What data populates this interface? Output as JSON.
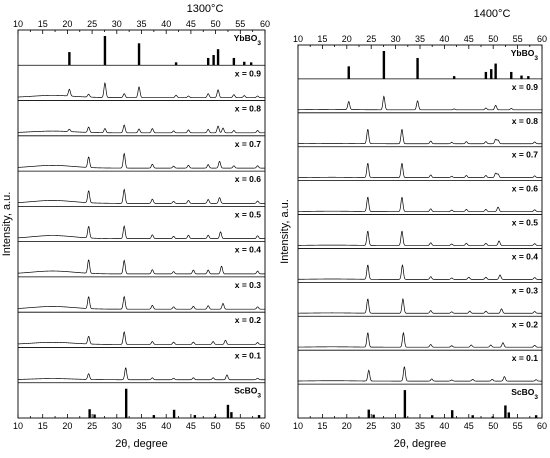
{
  "chart_data": [
    {
      "type": "line",
      "title": "1300°C",
      "xlabel": "2θ, degree",
      "ylabel": "Intensity, a.u.",
      "xlim": [
        10,
        60
      ],
      "x_ticks": [
        10,
        15,
        20,
        25,
        30,
        35,
        40,
        45,
        50,
        55,
        60
      ],
      "rows": [
        {
          "label": "YbBO3",
          "kind": "reference",
          "peaks": [
            [
              20.4,
              0.45
            ],
            [
              27.6,
              1.0
            ],
            [
              34.5,
              0.75
            ],
            [
              42.0,
              0.1
            ],
            [
              48.5,
              0.25
            ],
            [
              49.6,
              0.35
            ],
            [
              50.5,
              0.55
            ],
            [
              53.7,
              0.25
            ],
            [
              55.8,
              0.12
            ],
            [
              57.2,
              0.1
            ]
          ]
        },
        {
          "label": "x = 0.9",
          "kind": "pattern",
          "hump": 0.22,
          "peaks": [
            [
              20.4,
              0.35
            ],
            [
              24.3,
              0.15
            ],
            [
              27.6,
              0.75
            ],
            [
              31.5,
              0.2
            ],
            [
              34.5,
              0.55
            ],
            [
              42.0,
              0.12
            ],
            [
              44.5,
              0.08
            ],
            [
              48.5,
              0.2
            ],
            [
              50.5,
              0.4
            ],
            [
              53.7,
              0.15
            ],
            [
              55.8,
              0.1
            ],
            [
              58.5,
              0.08
            ]
          ]
        },
        {
          "label": "x = 0.8",
          "kind": "pattern",
          "hump": 0.18,
          "peaks": [
            [
              20.4,
              0.12
            ],
            [
              24.3,
              0.28
            ],
            [
              27.6,
              0.22
            ],
            [
              31.5,
              0.4
            ],
            [
              34.5,
              0.2
            ],
            [
              37.2,
              0.22
            ],
            [
              41.5,
              0.1
            ],
            [
              44.5,
              0.15
            ],
            [
              48.5,
              0.18
            ],
            [
              50.5,
              0.35
            ],
            [
              51.5,
              0.25
            ],
            [
              53.7,
              0.12
            ],
            [
              58.5,
              0.12
            ]
          ]
        },
        {
          "label": "x = 0.7",
          "kind": "pattern",
          "hump": 0.28,
          "peaks": [
            [
              24.3,
              0.55
            ],
            [
              31.5,
              0.75
            ],
            [
              37.2,
              0.2
            ],
            [
              41.5,
              0.1
            ],
            [
              44.5,
              0.15
            ],
            [
              48.5,
              0.18
            ],
            [
              50.8,
              0.35
            ],
            [
              53.7,
              0.12
            ],
            [
              58.5,
              0.12
            ]
          ]
        },
        {
          "label": "x = 0.6",
          "kind": "pattern",
          "hump": 0.3,
          "peaks": [
            [
              24.3,
              0.62
            ],
            [
              31.5,
              0.72
            ],
            [
              37.2,
              0.22
            ],
            [
              41.5,
              0.1
            ],
            [
              44.5,
              0.15
            ],
            [
              48.5,
              0.2
            ],
            [
              50.8,
              0.3
            ],
            [
              58.5,
              0.12
            ]
          ]
        },
        {
          "label": "x = 0.5",
          "kind": "pattern",
          "hump": 0.32,
          "peaks": [
            [
              24.3,
              0.6
            ],
            [
              31.5,
              0.65
            ],
            [
              37.2,
              0.2
            ],
            [
              41.5,
              0.12
            ],
            [
              44.5,
              0.18
            ],
            [
              48.5,
              0.18
            ],
            [
              51.0,
              0.35
            ],
            [
              58.5,
              0.15
            ]
          ]
        },
        {
          "label": "x = 0.4",
          "kind": "pattern",
          "hump": 0.3,
          "peaks": [
            [
              24.3,
              0.7
            ],
            [
              31.5,
              0.7
            ],
            [
              37.2,
              0.22
            ],
            [
              41.5,
              0.12
            ],
            [
              45.5,
              0.2
            ],
            [
              48.5,
              0.2
            ],
            [
              51.2,
              0.4
            ],
            [
              58.5,
              0.15
            ]
          ]
        },
        {
          "label": "x = 0.3",
          "kind": "pattern",
          "hump": 0.28,
          "peaks": [
            [
              24.3,
              0.62
            ],
            [
              31.5,
              0.65
            ],
            [
              37.2,
              0.2
            ],
            [
              41.5,
              0.12
            ],
            [
              45.5,
              0.15
            ],
            [
              48.5,
              0.18
            ],
            [
              51.5,
              0.3
            ],
            [
              58.5,
              0.12
            ]
          ]
        },
        {
          "label": "x = 0.2",
          "kind": "pattern",
          "hump": 0.22,
          "peaks": [
            [
              24.3,
              0.4
            ],
            [
              31.5,
              0.65
            ],
            [
              37.2,
              0.15
            ],
            [
              41.5,
              0.12
            ],
            [
              45.5,
              0.12
            ],
            [
              49.5,
              0.15
            ],
            [
              52.0,
              0.22
            ],
            [
              58.5,
              0.1
            ]
          ]
        },
        {
          "label": "x = 0.1",
          "kind": "pattern",
          "hump": 0.12,
          "peaks": [
            [
              24.3,
              0.3
            ],
            [
              31.8,
              0.62
            ],
            [
              37.2,
              0.1
            ],
            [
              41.5,
              0.08
            ],
            [
              45.5,
              0.1
            ],
            [
              49.5,
              0.1
            ],
            [
              52.3,
              0.25
            ],
            [
              58.5,
              0.08
            ]
          ]
        },
        {
          "label": "ScBO3",
          "kind": "reference",
          "peaks": [
            [
              24.5,
              0.3
            ],
            [
              25.5,
              0.12
            ],
            [
              31.9,
              1.0
            ],
            [
              37.5,
              0.1
            ],
            [
              41.6,
              0.28
            ],
            [
              45.8,
              0.1
            ],
            [
              49.9,
              0.05
            ],
            [
              52.5,
              0.45
            ],
            [
              53.2,
              0.2
            ],
            [
              58.8,
              0.1
            ]
          ]
        }
      ]
    },
    {
      "type": "line",
      "title": "1400°C",
      "xlabel": "2θ, degree",
      "ylabel": "Intensity, a.u.",
      "xlim": [
        10,
        60
      ],
      "x_ticks": [
        10,
        15,
        20,
        25,
        30,
        35,
        40,
        45,
        50,
        55,
        60
      ],
      "rows": [
        {
          "label": "YbBO3",
          "kind": "reference",
          "peaks": [
            [
              20.4,
              0.45
            ],
            [
              27.6,
              1.0
            ],
            [
              34.5,
              0.75
            ],
            [
              42.0,
              0.1
            ],
            [
              48.5,
              0.25
            ],
            [
              49.6,
              0.35
            ],
            [
              50.5,
              0.55
            ],
            [
              53.7,
              0.25
            ],
            [
              55.8,
              0.12
            ],
            [
              57.2,
              0.1
            ]
          ]
        },
        {
          "label": "x = 0.9",
          "kind": "pattern",
          "hump": 0.04,
          "peaks": [
            [
              20.4,
              0.45
            ],
            [
              27.6,
              0.75
            ],
            [
              34.5,
              0.5
            ],
            [
              42.0,
              0.05
            ],
            [
              48.5,
              0.1
            ],
            [
              50.5,
              0.25
            ],
            [
              53.7,
              0.08
            ]
          ]
        },
        {
          "label": "x = 0.8",
          "kind": "pattern",
          "hump": 0.04,
          "peaks": [
            [
              24.3,
              0.8
            ],
            [
              31.3,
              0.8
            ],
            [
              37.2,
              0.15
            ],
            [
              41.5,
              0.08
            ],
            [
              44.5,
              0.12
            ],
            [
              48.5,
              0.12
            ],
            [
              50.5,
              0.25
            ],
            [
              51.0,
              0.2
            ],
            [
              58.5,
              0.1
            ]
          ]
        },
        {
          "label": "x = 0.7",
          "kind": "pattern",
          "hump": 0.04,
          "peaks": [
            [
              24.3,
              0.8
            ],
            [
              31.3,
              0.8
            ],
            [
              37.2,
              0.15
            ],
            [
              41.5,
              0.08
            ],
            [
              44.5,
              0.12
            ],
            [
              48.5,
              0.12
            ],
            [
              50.5,
              0.25
            ],
            [
              51.0,
              0.2
            ],
            [
              58.5,
              0.1
            ]
          ]
        },
        {
          "label": "x = 0.6",
          "kind": "pattern",
          "hump": 0.04,
          "peaks": [
            [
              24.3,
              0.8
            ],
            [
              31.3,
              0.8
            ],
            [
              37.2,
              0.15
            ],
            [
              41.5,
              0.08
            ],
            [
              44.5,
              0.12
            ],
            [
              48.5,
              0.12
            ],
            [
              51.0,
              0.25
            ],
            [
              58.5,
              0.1
            ]
          ]
        },
        {
          "label": "x = 0.5",
          "kind": "pattern",
          "hump": 0.04,
          "peaks": [
            [
              24.3,
              0.8
            ],
            [
              31.3,
              0.8
            ],
            [
              37.2,
              0.15
            ],
            [
              41.5,
              0.08
            ],
            [
              44.5,
              0.12
            ],
            [
              48.5,
              0.12
            ],
            [
              51.2,
              0.25
            ],
            [
              58.5,
              0.1
            ]
          ]
        },
        {
          "label": "x = 0.4",
          "kind": "pattern",
          "hump": 0.04,
          "peaks": [
            [
              24.3,
              0.8
            ],
            [
              31.4,
              0.8
            ],
            [
              37.2,
              0.15
            ],
            [
              41.5,
              0.08
            ],
            [
              45.0,
              0.12
            ],
            [
              48.5,
              0.12
            ],
            [
              51.4,
              0.25
            ],
            [
              58.5,
              0.1
            ]
          ]
        },
        {
          "label": "x = 0.3",
          "kind": "pattern",
          "hump": 0.04,
          "peaks": [
            [
              24.3,
              0.8
            ],
            [
              31.5,
              0.8
            ],
            [
              37.2,
              0.15
            ],
            [
              41.5,
              0.08
            ],
            [
              45.2,
              0.12
            ],
            [
              48.5,
              0.12
            ],
            [
              51.7,
              0.25
            ],
            [
              58.5,
              0.1
            ]
          ]
        },
        {
          "label": "x = 0.2",
          "kind": "pattern",
          "hump": 0.04,
          "peaks": [
            [
              24.3,
              0.8
            ],
            [
              31.6,
              0.8
            ],
            [
              37.2,
              0.15
            ],
            [
              41.5,
              0.08
            ],
            [
              45.5,
              0.12
            ],
            [
              49.5,
              0.12
            ],
            [
              52.0,
              0.25
            ],
            [
              58.5,
              0.1
            ]
          ]
        },
        {
          "label": "x = 0.1",
          "kind": "pattern",
          "hump": 0.04,
          "peaks": [
            [
              24.5,
              0.6
            ],
            [
              31.8,
              0.8
            ],
            [
              37.4,
              0.12
            ],
            [
              41.5,
              0.06
            ],
            [
              45.8,
              0.1
            ],
            [
              49.8,
              0.1
            ],
            [
              52.3,
              0.25
            ],
            [
              58.8,
              0.08
            ]
          ]
        },
        {
          "label": "ScBO3",
          "kind": "reference",
          "peaks": [
            [
              24.5,
              0.3
            ],
            [
              25.5,
              0.12
            ],
            [
              31.9,
              1.0
            ],
            [
              37.5,
              0.1
            ],
            [
              41.6,
              0.28
            ],
            [
              45.8,
              0.1
            ],
            [
              49.9,
              0.05
            ],
            [
              52.5,
              0.45
            ],
            [
              53.2,
              0.2
            ],
            [
              58.8,
              0.1
            ]
          ]
        }
      ]
    }
  ]
}
